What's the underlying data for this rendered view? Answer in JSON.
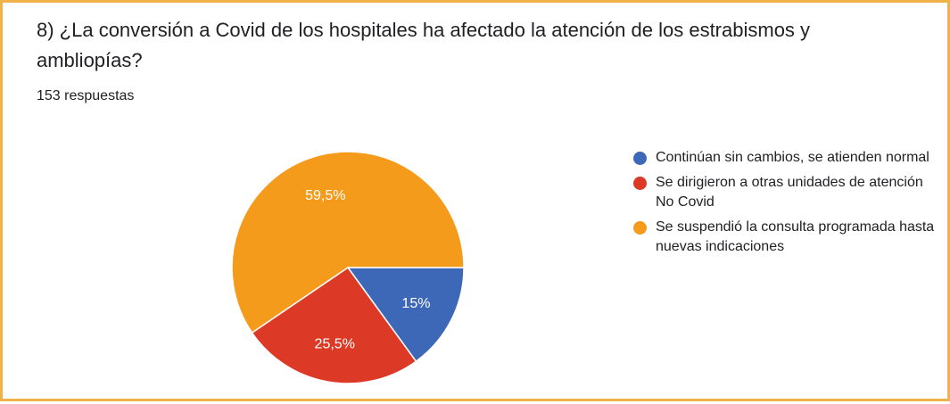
{
  "question": "8) ¿La conversión a Covid de los hospitales ha afectado la atención de los estrabismos y ambliopías?",
  "response_count": "153 respuestas",
  "chart_data": {
    "type": "pie",
    "title": "8) ¿La conversión a Covid de los hospitales ha afectado la atención de los estrabismos y ambliopías?",
    "categories": [
      "Continúan sin cambios, se atienden normal",
      "Se dirigieron a otras unidades de atención No Covid",
      "Se suspendió la consulta programada hasta nuevas indicaciones"
    ],
    "values": [
      15,
      25.5,
      59.5
    ],
    "labels": [
      "15%",
      "25,5%",
      "59,5%"
    ],
    "colors": [
      "#3d68b8",
      "#dc3a26",
      "#f59b1c"
    ],
    "legend_position": "right"
  }
}
